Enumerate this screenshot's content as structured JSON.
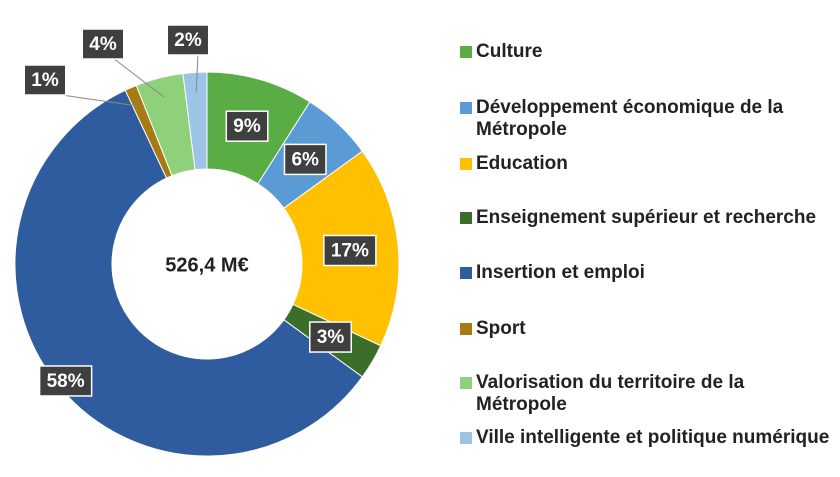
{
  "chart_data": {
    "type": "donut",
    "center_label": "526,4 M€",
    "categories": [
      "Culture",
      "Développement économique de la Métropole",
      "Education",
      "Enseignement supérieur et recherche",
      "Insertion et emploi",
      "Sport",
      "Valorisation du territoire de la Métropole",
      "Ville intelligente et politique numérique"
    ],
    "values": [
      9,
      6,
      17,
      3,
      58,
      1,
      4,
      2
    ],
    "value_labels": [
      "9%",
      "6%",
      "17%",
      "3%",
      "58%",
      "1%",
      "4%",
      "2%"
    ],
    "colors": [
      "#5aac44",
      "#5b9bd5",
      "#ffc000",
      "#3b6e2a",
      "#2e5c9e",
      "#a87a12",
      "#8fd07a",
      "#9dc3e6"
    ],
    "legend": "right"
  }
}
